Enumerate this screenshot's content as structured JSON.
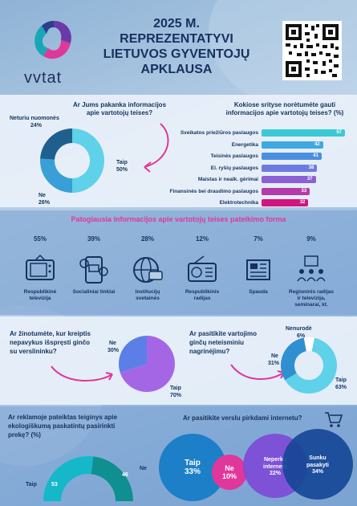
{
  "header": {
    "logo_text": "vvtat",
    "title_lines": [
      "2025 M.",
      "REPREZENTATYVI",
      "LIETUVOS GYVENTOJŲ",
      "APKLAUSA"
    ]
  },
  "q1": {
    "question_lines": [
      "Ar Jums pakanka informacijos",
      "apie vartotojų teises?"
    ],
    "slices": [
      {
        "label": "Taip",
        "value": 50,
        "color": "#5fd1e8"
      },
      {
        "label": "Ne",
        "value": 26,
        "color": "#3a9fd6"
      },
      {
        "label": "Neturiu nuomonės",
        "value": 24,
        "color": "#1f5f8e"
      }
    ],
    "label_taip": "Taip",
    "value_taip": "50%",
    "label_ne": "Ne",
    "value_ne": "26%",
    "label_neturiu": "Neturiu nuomonės",
    "value_neturiu": "24%"
  },
  "q2": {
    "question_lines": [
      "Kokiose srityse norėtumėte gauti",
      "informacijos apie vartotojų teises? (%)"
    ],
    "bars": [
      {
        "label": "Sveikatos priežiūros paslaugos",
        "value": 57,
        "color": "#3cc9d6"
      },
      {
        "label": "Energetika",
        "value": 42,
        "color": "#3fa9e2"
      },
      {
        "label": "Teisinės paslaugos",
        "value": 41,
        "color": "#4b8fe0"
      },
      {
        "label": "El. ryšių paslaugos",
        "value": 38,
        "color": "#6d7be0"
      },
      {
        "label": "Maistas ir nealk. gėrimai",
        "value": 37,
        "color": "#8b5fd6"
      },
      {
        "label": "Finansinės bei draudimo paslaugos",
        "value": 33,
        "color": "#b43ca8"
      },
      {
        "label": "Elektrotechnika",
        "value": 32,
        "color": "#d2157f"
      }
    ]
  },
  "q3": {
    "title": "Patogiausia informacijos apie vartotojų teises pateikimo forma",
    "items": [
      {
        "pct": "55%",
        "caption": "Respublikinė televizija",
        "icon": "tv-icon"
      },
      {
        "pct": "39%",
        "caption": "Socialiniai tinklai",
        "icon": "social-media-icon"
      },
      {
        "pct": "28%",
        "caption": "Institucijų svetainės",
        "icon": "website-icon"
      },
      {
        "pct": "12%",
        "caption": "Respublikinis radijas",
        "icon": "radio-icon"
      },
      {
        "pct": "7%",
        "caption": "Spauda",
        "icon": "newspaper-icon"
      },
      {
        "pct": "9%",
        "caption": "Regioninis radijas ir televizija, seminarai, kt.",
        "icon": "seminar-icon"
      }
    ]
  },
  "q4": {
    "question_lines": [
      "Ar žinotumėte, kur kreiptis",
      "nepavykus išspręsti ginčo",
      "su verslininku?"
    ],
    "label_ne": "Ne",
    "value_ne": "30%",
    "label_taip": "Taip",
    "value_taip": "70%",
    "color_ne": "#5b7fe6",
    "color_taip": "#a566e6"
  },
  "q5": {
    "question_lines": [
      "Ar pasitikite vartojimo",
      "ginčų neteisminiu",
      "nagrinėjimu?"
    ],
    "label_taip": "Taip",
    "value_taip": "63%",
    "label_ne": "Ne",
    "value_ne": "31%",
    "label_nenurode": "Nenurodė",
    "value_nenurode": "6%"
  },
  "q6": {
    "question_lines": [
      "Ar reklamoje pateiktas teiginys apie",
      "ekologiškumą paskatintų pasirinkti",
      "prekę? (%)"
    ],
    "label_taip": "Taip",
    "value_taip": "53",
    "label_ne": "Ne",
    "value_ne": "46"
  },
  "q7": {
    "question": "Ar pasitikite verslu pirkdami internetu?",
    "taip_label": "Taip",
    "taip_value": "33%",
    "ne_label": "Ne",
    "ne_value": "10%",
    "neperku_label": "Neperku internetu",
    "neperku_value": "22%",
    "sunku_label": "Sunku pasakyti",
    "sunku_value": "34%"
  },
  "colors": {
    "navy": "#14325c",
    "pink": "#e0379a",
    "teal": "#12b3c4"
  },
  "chart_data": [
    {
      "type": "pie",
      "title": "Ar Jums pakanka informacijos apie vartotojų teises?",
      "categories": [
        "Taip",
        "Ne",
        "Neturiu nuomonės"
      ],
      "values": [
        50,
        26,
        24
      ]
    },
    {
      "type": "bar",
      "title": "Kokiose srityse norėtumėte gauti informacijos apie vartotojų teises? (%)",
      "categories": [
        "Sveikatos priežiūros paslaugos",
        "Energetika",
        "Teisinės paslaugos",
        "El. ryšių paslaugos",
        "Maistas ir nealk. gėrimai",
        "Finansinės bei draudimo paslaugos",
        "Elektrotechnika"
      ],
      "values": [
        57,
        42,
        41,
        38,
        37,
        33,
        32
      ]
    },
    {
      "type": "pie",
      "title": "Ar žinotumėte, kur kreiptis nepavykus išspręsti ginčo su verslininku?",
      "categories": [
        "Taip",
        "Ne"
      ],
      "values": [
        70,
        30
      ]
    },
    {
      "type": "pie",
      "title": "Ar pasitikite vartojimo ginčų neteisminiu nagrinėjimu?",
      "categories": [
        "Taip",
        "Ne",
        "Nenurodė"
      ],
      "values": [
        63,
        31,
        6
      ]
    },
    {
      "type": "pie",
      "title": "Ar reklamoje pateiktas teiginys apie ekologiškumą paskatintų pasirinkti prekę? (%)",
      "categories": [
        "Taip",
        "Ne"
      ],
      "values": [
        53,
        46
      ]
    },
    {
      "type": "bar",
      "title": "Ar pasitikite verslu pirkdami internetu?",
      "categories": [
        "Taip",
        "Ne",
        "Neperku internetu",
        "Sunku pasakyti"
      ],
      "values": [
        33,
        10,
        22,
        34
      ]
    }
  ]
}
